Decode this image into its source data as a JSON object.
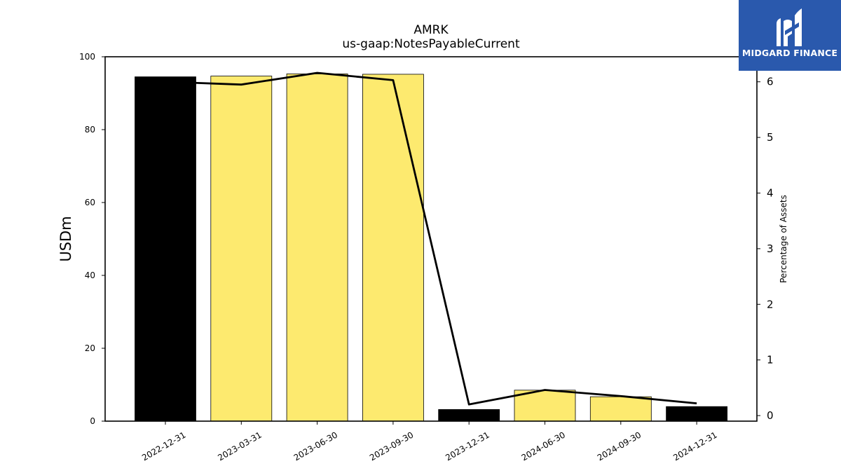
{
  "chart_data": {
    "type": "bar",
    "title": "AMRK",
    "subtitle": "us-gaap:NotesPayableCurrent",
    "ylabel": "USDm",
    "ylabel_right": "Percentage of Assets",
    "ylim": [
      0,
      100
    ],
    "ylim_right": [
      -0.1,
      6.45
    ],
    "yticks": [
      0,
      20,
      40,
      60,
      80,
      100
    ],
    "yticks_right": [
      0,
      1,
      2,
      3,
      4,
      5,
      6
    ],
    "categories": [
      "2022-12-31",
      "2023-03-31",
      "2023-06-30",
      "2023-09-30",
      "2023-12-31",
      "2024-06-30",
      "2024-09-30",
      "2024-12-31"
    ],
    "values": [
      94.5,
      94.7,
      95.3,
      95.2,
      3.2,
      8.5,
      6.7,
      4.0
    ],
    "bar_colors": [
      "#000000",
      "#fdea6f",
      "#fdea6f",
      "#fdea6f",
      "#000000",
      "#fdea6f",
      "#fdea6f",
      "#000000"
    ],
    "line_series": {
      "axis": "right",
      "values": [
        6.0,
        5.95,
        6.16,
        6.03,
        0.2,
        0.46,
        0.35,
        0.22
      ]
    }
  },
  "logo": {
    "text": "MIDGARD FINANCE",
    "color": "#2a59ad"
  }
}
